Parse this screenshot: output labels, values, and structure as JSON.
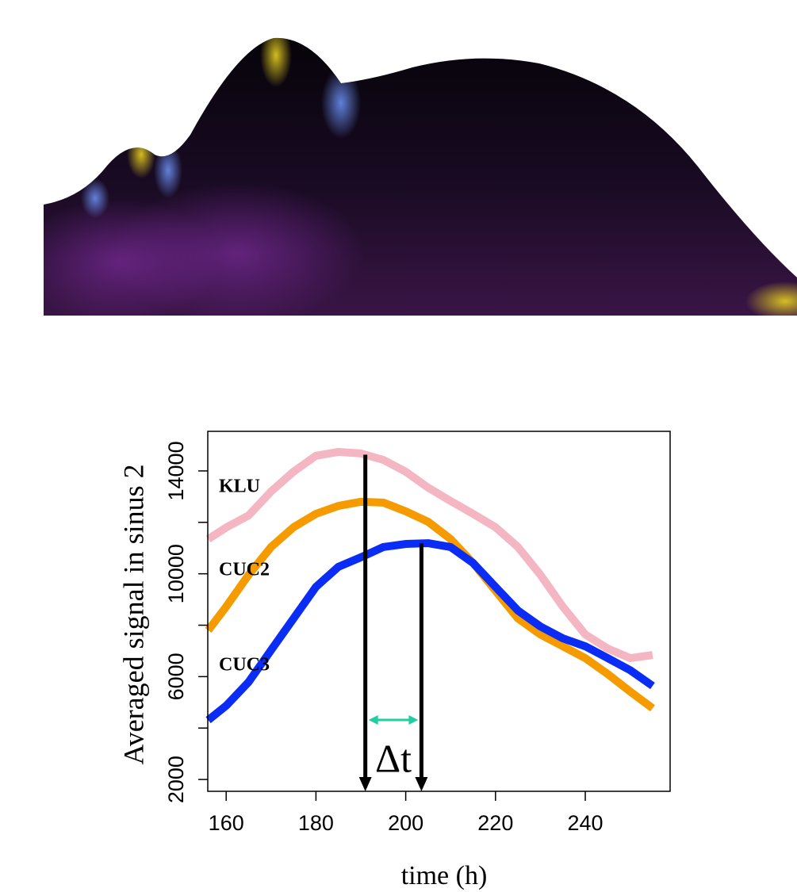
{
  "chart_data": {
    "type": "line",
    "y_label": "Averaged signal in sinus 2",
    "x_label": "time (h)",
    "x": [
      156,
      160,
      165,
      170,
      175,
      180,
      185,
      190,
      195,
      200,
      205,
      210,
      215,
      220,
      225,
      230,
      235,
      240,
      245,
      250,
      255
    ],
    "series": [
      {
        "name": "KLU",
        "color": "#f4b6c2",
        "values": [
          11350,
          11800,
          12270,
          13200,
          13970,
          14590,
          14740,
          14680,
          14430,
          13970,
          13350,
          12830,
          12330,
          11810,
          11040,
          9960,
          8720,
          7640,
          7090,
          6720,
          6840
        ]
      },
      {
        "name": "CUC2",
        "color": "#f59b00",
        "values": [
          7800,
          8720,
          9960,
          11040,
          11810,
          12330,
          12640,
          12800,
          12770,
          12430,
          12020,
          11350,
          10420,
          9340,
          8260,
          7640,
          7180,
          6720,
          6100,
          5420,
          4770
        ]
      },
      {
        "name": "CUC3",
        "color": "#0a2cf5",
        "values": [
          4310,
          4870,
          5790,
          7030,
          8260,
          9490,
          10270,
          10640,
          11040,
          11160,
          11190,
          11040,
          10420,
          9490,
          8570,
          7950,
          7490,
          7180,
          6720,
          6250,
          5640
        ]
      }
    ],
    "xlim": [
      155.9,
      258.9
    ],
    "xticks": [
      160,
      180,
      200,
      220,
      240
    ],
    "ylim": [
      1540,
      15540
    ],
    "yticks": [
      2000,
      6000,
      10000,
      14000
    ],
    "minor_yticks": [
      4000,
      8000,
      12000
    ],
    "markers_x": [
      191,
      203.5
    ],
    "interval_label": "Δt"
  }
}
